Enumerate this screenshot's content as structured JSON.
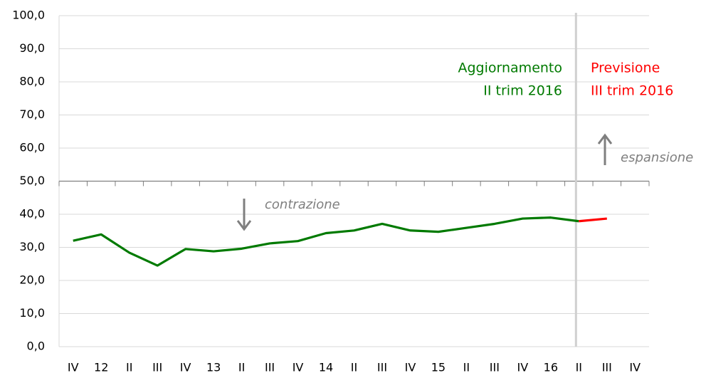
{
  "chart_data": {
    "type": "line",
    "categories": [
      "IV",
      "12",
      "II",
      "III",
      "IV",
      "13",
      "II",
      "III",
      "IV",
      "14",
      "II",
      "III",
      "IV",
      "15",
      "II",
      "III",
      "IV",
      "16",
      "II",
      "III",
      "IV"
    ],
    "series": [
      {
        "name": "Aggiornamento II trim 2016",
        "color": "#007a00",
        "values": [
          32.0,
          33.9,
          28.4,
          24.5,
          29.5,
          28.8,
          29.6,
          31.2,
          31.9,
          34.3,
          35.1,
          37.1,
          35.1,
          34.7,
          35.9,
          37.1,
          38.7,
          39.0,
          37.9,
          null,
          null
        ]
      },
      {
        "name": "Previsione III trim 2016",
        "color": "#ff0000",
        "values": [
          null,
          null,
          null,
          null,
          null,
          null,
          null,
          null,
          null,
          null,
          null,
          null,
          null,
          null,
          null,
          null,
          null,
          null,
          37.9,
          38.7,
          null
        ]
      }
    ],
    "ylim": [
      0,
      100
    ],
    "yticks": [
      {
        "value": 0,
        "label": "0,0"
      },
      {
        "value": 10,
        "label": "10,0"
      },
      {
        "value": 20,
        "label": "20,0"
      },
      {
        "value": 30,
        "label": "30,0"
      },
      {
        "value": 40,
        "label": "40,0"
      },
      {
        "value": 50,
        "label": "50,0"
      },
      {
        "value": 60,
        "label": "60,0"
      },
      {
        "value": 70,
        "label": "70,0"
      },
      {
        "value": 80,
        "label": "80,0"
      },
      {
        "value": 90,
        "label": "90,0"
      },
      {
        "value": 100,
        "label": "100,0"
      }
    ],
    "grid": true,
    "x_axis_at": 50,
    "annotations": {
      "update_1": "Aggiornamento",
      "update_2": "II trim 2016",
      "forecast_1": "Previsione",
      "forecast_2": "III trim 2016",
      "up": "espansione",
      "down": "contrazione"
    }
  }
}
